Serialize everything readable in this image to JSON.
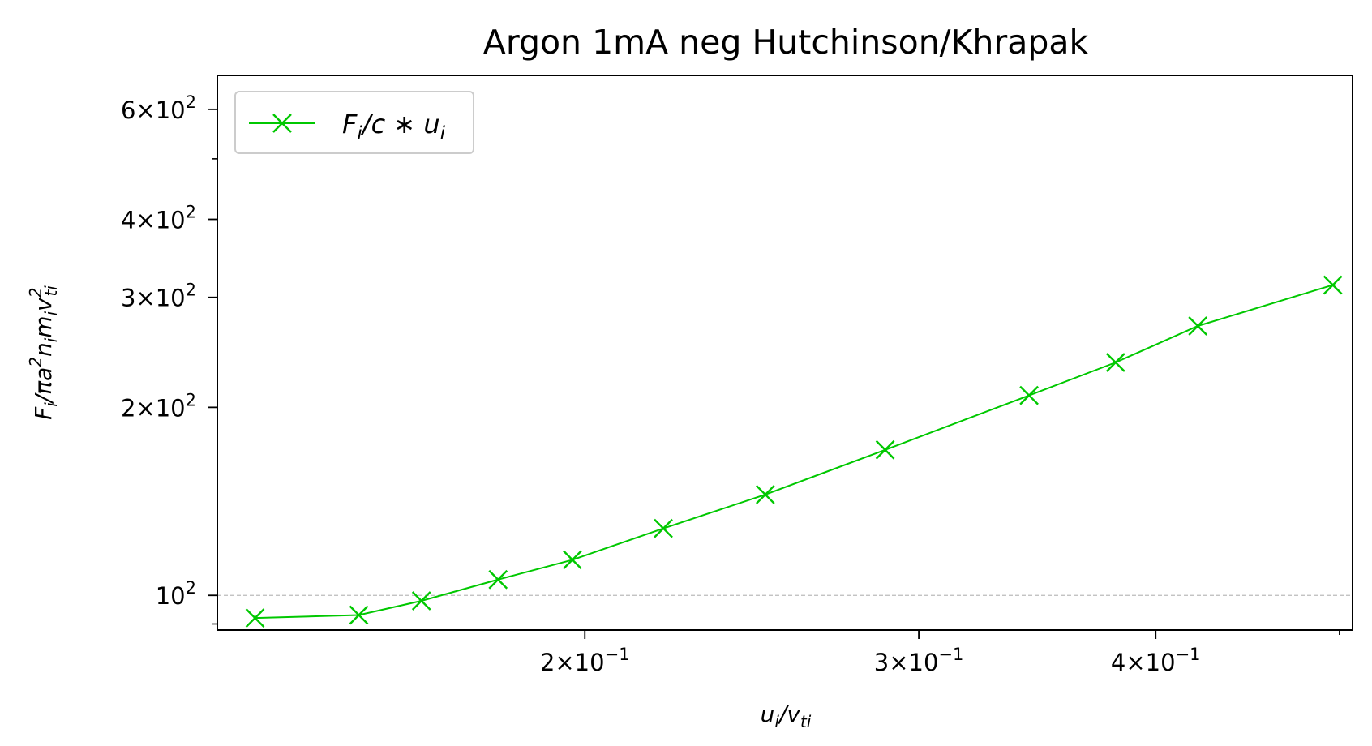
{
  "chart_data": {
    "type": "line",
    "title": "Argon 1mA neg Hutchinson/Khrapak",
    "xlabel": "u_i/v_ti",
    "ylabel": "F_i/πa²n_im_iv²_ti",
    "xscale": "log",
    "yscale": "log",
    "xlim": [
      0.128,
      0.508
    ],
    "ylim": [
      88,
      680
    ],
    "x_ticks": [
      {
        "value": 0.2,
        "mant": "2",
        "exp": "−1"
      },
      {
        "value": 0.3,
        "mant": "3",
        "exp": "−1"
      },
      {
        "value": 0.4,
        "mant": "4",
        "exp": "−1"
      }
    ],
    "y_ticks": [
      {
        "value": 100,
        "mant": "",
        "exp": "2"
      },
      {
        "value": 200,
        "mant": "2",
        "exp": "2"
      },
      {
        "value": 300,
        "mant": "3",
        "exp": "2"
      },
      {
        "value": 400,
        "mant": "4",
        "exp": "2"
      },
      {
        "value": 600,
        "mant": "6",
        "exp": "2"
      }
    ],
    "reference_line": {
      "y": 100,
      "style": "dashed",
      "color": "#bbbbbb"
    },
    "legend": {
      "position": "top-left"
    },
    "grid": false,
    "series": [
      {
        "name": "F_i/c*u_i",
        "color": "#00c800",
        "marker": "x",
        "points": [
          {
            "x": 0.134,
            "y": 92
          },
          {
            "x": 0.152,
            "y": 93
          },
          {
            "x": 0.164,
            "y": 98
          },
          {
            "x": 0.18,
            "y": 106
          },
          {
            "x": 0.197,
            "y": 114
          },
          {
            "x": 0.22,
            "y": 128
          },
          {
            "x": 0.249,
            "y": 145
          },
          {
            "x": 0.288,
            "y": 171
          },
          {
            "x": 0.343,
            "y": 209
          },
          {
            "x": 0.381,
            "y": 236
          },
          {
            "x": 0.421,
            "y": 270
          },
          {
            "x": 0.496,
            "y": 314
          }
        ]
      }
    ]
  }
}
